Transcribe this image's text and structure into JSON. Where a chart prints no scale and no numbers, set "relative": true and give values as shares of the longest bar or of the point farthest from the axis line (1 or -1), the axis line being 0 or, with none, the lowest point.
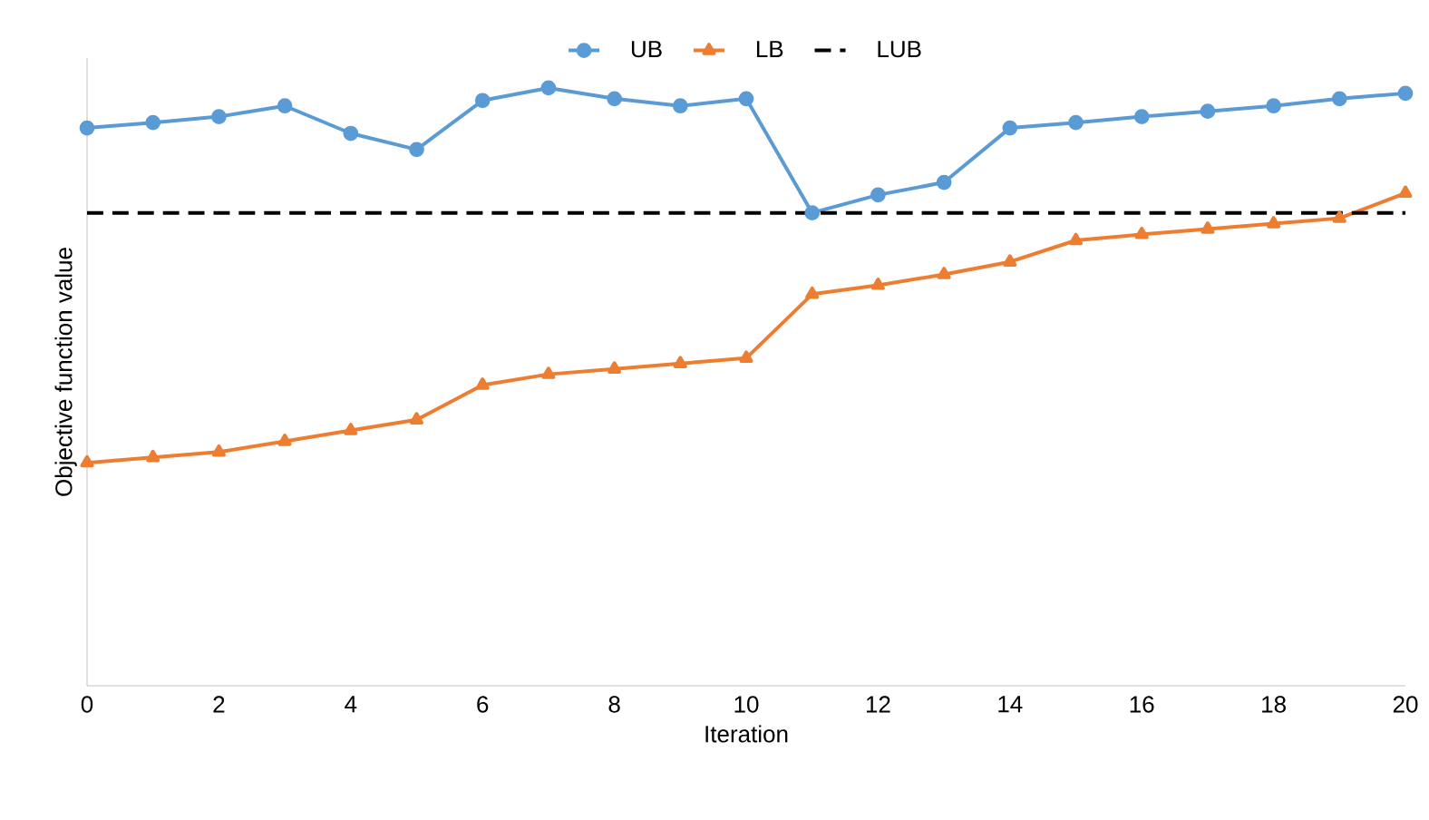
{
  "chart_data": {
    "type": "line",
    "relative": true,
    "xlabel": "Iteration",
    "ylabel": "Objective function value",
    "x": [
      0,
      1,
      2,
      3,
      4,
      5,
      6,
      7,
      8,
      9,
      10,
      11,
      12,
      13,
      14,
      15,
      16,
      17,
      18,
      19,
      20
    ],
    "xlim": [
      0,
      20
    ],
    "xticks": [
      0,
      2,
      4,
      6,
      8,
      10,
      12,
      14,
      16,
      18,
      20
    ],
    "legend": "top",
    "grid": false,
    "series": [
      {
        "name": "UB",
        "color": "#5b9bd5",
        "marker": "circle",
        "line_style": "solid",
        "values": [
          0.933,
          0.942,
          0.952,
          0.97,
          0.924,
          0.897,
          0.979,
          1,
          0.982,
          0.97,
          0.982,
          0.791,
          0.821,
          0.842,
          0.933,
          0.942,
          0.952,
          0.961,
          0.97,
          0.982,
          0.991
        ]
      },
      {
        "name": "LB",
        "color": "#ed7d31",
        "marker": "triangle",
        "line_style": "solid",
        "values": [
          0.373,
          0.382,
          0.391,
          0.409,
          0.427,
          0.445,
          0.503,
          0.521,
          0.53,
          0.539,
          0.548,
          0.655,
          0.67,
          0.688,
          0.709,
          0.745,
          0.755,
          0.764,
          0.773,
          0.782,
          0.824
        ]
      },
      {
        "name": "LUB",
        "color": "#000000",
        "marker": "none",
        "line_style": "dashed",
        "values": [
          0.791,
          0.791,
          0.791,
          0.791,
          0.791,
          0.791,
          0.791,
          0.791,
          0.791,
          0.791,
          0.791,
          0.791,
          0.791,
          0.791,
          0.791,
          0.791,
          0.791,
          0.791,
          0.791,
          0.791,
          0.791
        ]
      }
    ]
  }
}
